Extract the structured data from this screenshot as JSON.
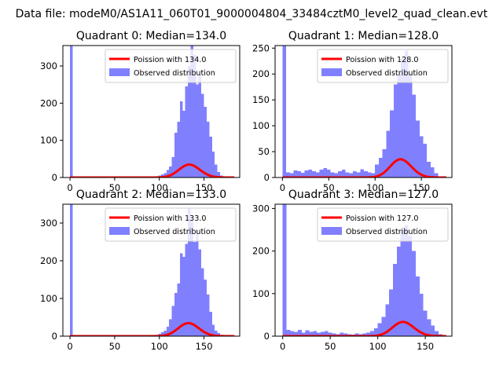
{
  "figure_title": "Data file: modeM0/AS1A11_060T01_9000004804_33484cztM0_level2_quad_clean.evt",
  "colors": {
    "observed": "#8080ff",
    "poisson": "#ff0000",
    "axis": "#000000",
    "background": "#ffffff"
  },
  "chart_data": [
    {
      "type": "bar",
      "title": "Quadrant 0: Median=134.0",
      "median": 134,
      "xlim": [
        -8,
        190
      ],
      "ylim": [
        0,
        355
      ],
      "xticks": [
        0,
        50,
        100,
        150
      ],
      "yticks": [
        0,
        100,
        200,
        300
      ],
      "bin_width": 3,
      "legend": {
        "poisson": "Poission with 134.0",
        "observed": "Observed distribution",
        "loc": "upper right"
      },
      "series": [
        {
          "name": "Observed distribution",
          "type": "histogram",
          "bins": [
            0,
            96,
            99,
            102,
            105,
            108,
            111,
            114,
            117,
            120,
            123,
            126,
            129,
            132,
            135,
            138,
            141,
            144,
            147,
            150,
            153,
            156,
            159,
            162,
            165,
            168
          ],
          "values": [
            355,
            2,
            5,
            8,
            12,
            20,
            30,
            55,
            120,
            150,
            205,
            180,
            245,
            300,
            360,
            330,
            250,
            275,
            225,
            190,
            150,
            110,
            70,
            35,
            15,
            5
          ]
        },
        {
          "name": "Poission with 134.0",
          "type": "line",
          "lambda": 134,
          "scale": 1010
        }
      ]
    },
    {
      "type": "bar",
      "title": "Quadrant 1: Median=128.0",
      "median": 128,
      "xlim": [
        -8,
        183
      ],
      "ylim": [
        0,
        255
      ],
      "xticks": [
        0,
        50,
        100,
        150
      ],
      "yticks": [
        0,
        50,
        100,
        150,
        200,
        250
      ],
      "bin_width": 4,
      "legend": {
        "poisson": "Poission with 128.0",
        "observed": "Observed distribution",
        "loc": "upper right"
      },
      "series": [
        {
          "name": "Observed distribution",
          "type": "histogram",
          "bins": [
            0,
            4,
            8,
            12,
            16,
            20,
            24,
            28,
            32,
            36,
            40,
            44,
            48,
            52,
            56,
            60,
            64,
            68,
            72,
            76,
            80,
            84,
            88,
            92,
            96,
            100,
            104,
            108,
            112,
            116,
            120,
            124,
            128,
            132,
            136,
            140,
            144,
            148,
            152,
            156,
            160,
            164
          ],
          "values": [
            255,
            10,
            8,
            14,
            12,
            9,
            14,
            15,
            12,
            10,
            15,
            18,
            15,
            10,
            8,
            12,
            15,
            10,
            8,
            12,
            10,
            16,
            12,
            10,
            8,
            25,
            38,
            55,
            90,
            130,
            180,
            200,
            230,
            245,
            200,
            160,
            110,
            80,
            65,
            30,
            20,
            8
          ]
        },
        {
          "name": "Poission with 128.0",
          "type": "line",
          "lambda": 128,
          "scale": 1000
        }
      ]
    },
    {
      "type": "bar",
      "title": "Quadrant 2: Median=133.0",
      "median": 133,
      "xlim": [
        -8,
        190
      ],
      "ylim": [
        0,
        350
      ],
      "xticks": [
        0,
        50,
        100,
        150
      ],
      "yticks": [
        0,
        100,
        200,
        300
      ],
      "bin_width": 3,
      "legend": {
        "poisson": "Poission with 133.0",
        "observed": "Observed distribution",
        "loc": "upper right"
      },
      "series": [
        {
          "name": "Observed distribution",
          "type": "histogram",
          "bins": [
            0,
            69,
            96,
            99,
            102,
            105,
            108,
            111,
            114,
            117,
            120,
            123,
            126,
            129,
            132,
            135,
            138,
            141,
            144,
            147,
            150,
            153,
            156,
            159,
            162,
            165,
            168
          ],
          "values": [
            350,
            3,
            3,
            6,
            10,
            15,
            25,
            45,
            80,
            115,
            140,
            220,
            210,
            245,
            340,
            310,
            250,
            280,
            230,
            180,
            150,
            110,
            65,
            30,
            15,
            8,
            3
          ]
        },
        {
          "name": "Poission with 133.0",
          "type": "line",
          "lambda": 133,
          "scale": 1000
        }
      ]
    },
    {
      "type": "bar",
      "title": "Quadrant 3: Median=127.0",
      "median": 127,
      "xlim": [
        -8,
        178
      ],
      "ylim": [
        0,
        310
      ],
      "xticks": [
        0,
        50,
        100,
        150
      ],
      "yticks": [
        0,
        100,
        200,
        300
      ],
      "bin_width": 4,
      "legend": {
        "poisson": "Poission with 127.0",
        "observed": "Observed distribution",
        "loc": "upper right"
      },
      "series": [
        {
          "name": "Observed distribution",
          "type": "histogram",
          "bins": [
            0,
            4,
            8,
            12,
            16,
            20,
            24,
            28,
            32,
            36,
            40,
            44,
            48,
            52,
            56,
            60,
            64,
            68,
            72,
            76,
            80,
            84,
            88,
            92,
            96,
            100,
            104,
            108,
            112,
            116,
            120,
            124,
            128,
            132,
            136,
            140,
            144,
            148,
            152,
            156,
            160,
            164
          ],
          "values": [
            310,
            15,
            12,
            10,
            15,
            8,
            14,
            10,
            12,
            8,
            10,
            12,
            8,
            6,
            5,
            8,
            6,
            5,
            4,
            6,
            5,
            6,
            8,
            12,
            18,
            30,
            45,
            75,
            110,
            170,
            210,
            250,
            260,
            235,
            200,
            140,
            100,
            60,
            40,
            25,
            12,
            5
          ]
        },
        {
          "name": "Poission with 127.0",
          "type": "line",
          "lambda": 127,
          "scale": 945
        }
      ]
    }
  ]
}
